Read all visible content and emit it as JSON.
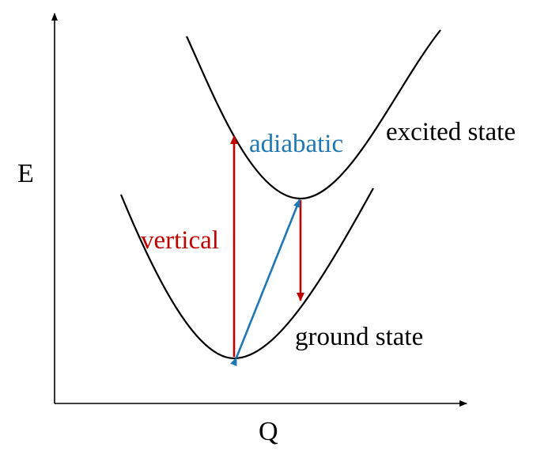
{
  "axes": {
    "y_label": "E",
    "x_label": "Q"
  },
  "curves": {
    "excited_label": "excited state",
    "ground_label": "ground state"
  },
  "transitions": {
    "vertical_label": "vertical",
    "adiabatic_label": "adiabatic"
  },
  "colors": {
    "axis": "#000000",
    "curve": "#000000",
    "vertical": "#c00000",
    "adiabatic": "#1f77b4",
    "text": "#000000"
  }
}
